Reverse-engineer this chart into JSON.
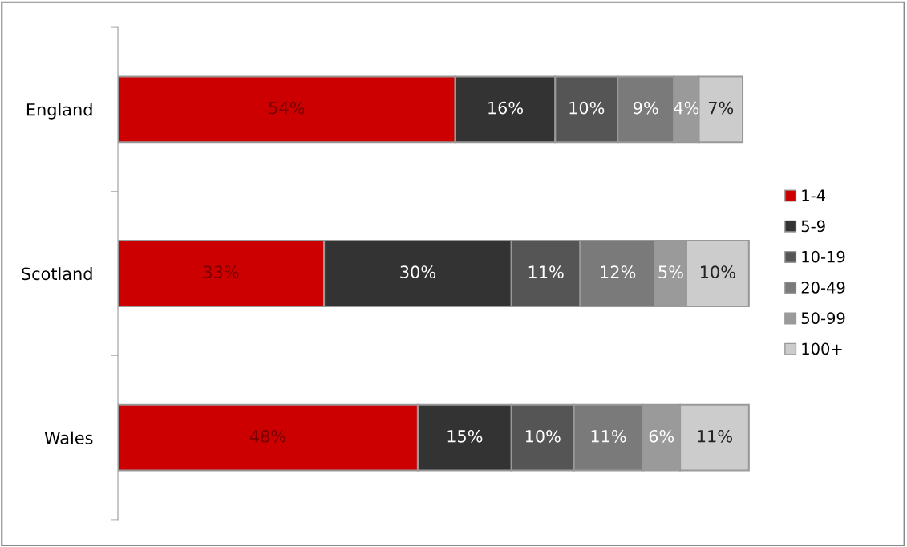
{
  "chart_data": {
    "type": "bar",
    "orientation": "horizontal",
    "stacked": true,
    "categories": [
      "England",
      "Scotland",
      "Wales"
    ],
    "series": [
      {
        "name": "1-4",
        "color": "#cc0000",
        "values": [
          54,
          33,
          48
        ],
        "value_labels": [
          "54%",
          "33%",
          "48%"
        ]
      },
      {
        "name": "5-9",
        "color": "#333333",
        "values": [
          16,
          30,
          15
        ],
        "value_labels": [
          "16%",
          "30%",
          "15%"
        ]
      },
      {
        "name": "10-19",
        "color": "#555555",
        "values": [
          10,
          11,
          10
        ],
        "value_labels": [
          "10%",
          "11%",
          "10%"
        ]
      },
      {
        "name": "20-49",
        "color": "#7a7a7a",
        "values": [
          9,
          12,
          11
        ],
        "value_labels": [
          "9%",
          "12%",
          "11%"
        ]
      },
      {
        "name": "50-99",
        "color": "#9a9a9a",
        "values": [
          4,
          5,
          6
        ],
        "value_labels": [
          "4%",
          "5%",
          "6%"
        ]
      },
      {
        "name": "100+",
        "color": "#cccccc",
        "values": [
          7,
          10,
          11
        ],
        "value_labels": [
          "7%",
          "10%",
          "11%"
        ]
      }
    ],
    "legend": "right",
    "grid": false,
    "tick_labels": "y"
  }
}
